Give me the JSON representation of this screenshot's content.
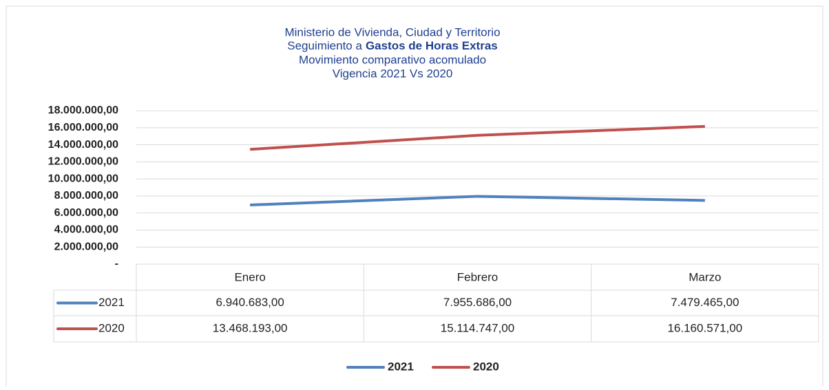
{
  "chart_data": {
    "type": "line",
    "title": [
      "Ministerio de Vivienda, Ciudad y Territorio",
      [
        "Seguimiento a",
        "Gastos de Horas Extras"
      ],
      "Movimiento  comparativo acomulado",
      "Vigencia 2021 Vs 2020"
    ],
    "categories": [
      "Enero",
      "Febrero",
      "Marzo"
    ],
    "series": [
      {
        "name": "2021",
        "color": "#4f81bd",
        "values": [
          6940683,
          7955686,
          7479465
        ],
        "value_labels": [
          "6.940.683,00",
          "7.955.686,00",
          "7.479.465,00"
        ]
      },
      {
        "name": "2020",
        "color": "#c0504d",
        "values": [
          13468193,
          15114747,
          16160571
        ],
        "value_labels": [
          "13.468.193,00",
          "15.114.747,00",
          "16.160.571,00"
        ]
      }
    ],
    "ylim": [
      0,
      18000000
    ],
    "yticks": [
      {
        "value": 0,
        "label": "-"
      },
      {
        "value": 2000000,
        "label": "2.000.000,00"
      },
      {
        "value": 4000000,
        "label": "4.000.000,00"
      },
      {
        "value": 6000000,
        "label": "6.000.000,00"
      },
      {
        "value": 8000000,
        "label": "8.000.000,00"
      },
      {
        "value": 10000000,
        "label": "10.000.000,00"
      },
      {
        "value": 12000000,
        "label": "12.000.000,00"
      },
      {
        "value": 14000000,
        "label": "14.000.000,00"
      },
      {
        "value": 16000000,
        "label": "16.000.000,00"
      },
      {
        "value": 18000000,
        "label": "18.000.000,00"
      }
    ],
    "grid": true,
    "legend": "bottom"
  }
}
